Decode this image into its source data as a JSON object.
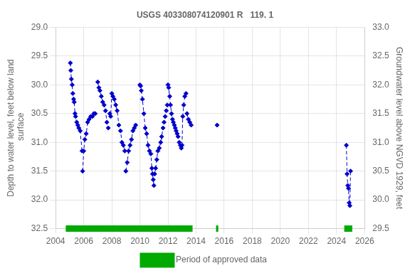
{
  "chart_data": {
    "type": "line",
    "title": "USGS 403308074120901 R   119. 1",
    "ylabel": "Depth to water level, feet below land\n surface",
    "y2label": "Groundwater level above NGVD 1929, feet",
    "xlim": [
      2004,
      2026
    ],
    "xticks": [
      2004,
      2006,
      2008,
      2010,
      2012,
      2014,
      2016,
      2018,
      2020,
      2022,
      2024,
      2026
    ],
    "ylim": [
      32.5,
      29.0
    ],
    "yticks": [
      {
        "value": 29.0,
        "label": "29.0"
      },
      29.5,
      {
        "value": 30.0,
        "label": "30.0"
      },
      30.5,
      {
        "value": 31.0,
        "label": "31.0"
      },
      31.5,
      {
        "value": 32.0,
        "label": "32.0"
      },
      32.5
    ],
    "y2lim": [
      29.5,
      33.0
    ],
    "y2ticks": [
      {
        "value": 33.0,
        "label": "33.0"
      },
      32.5,
      {
        "value": 32.0,
        "label": "32.0"
      },
      31.5,
      {
        "value": 31.0,
        "label": "31.0"
      },
      30.5,
      {
        "value": 30.0,
        "label": "30.0"
      },
      29.5
    ],
    "grid": true,
    "legend": "bottom",
    "series": [
      {
        "color": "#0000cc",
        "marker": "diamond",
        "line_style": "dashed",
        "x": [
          2005.05,
          2005.08,
          2005.12,
          2005.18,
          2005.22,
          2005.28,
          2005.32,
          2005.38,
          2005.42,
          2005.5,
          2005.58,
          2005.65,
          2005.75,
          2005.88
        ],
        "values": [
          29.62,
          29.75,
          29.9,
          30.0,
          30.15,
          30.25,
          30.3,
          30.5,
          30.55,
          30.65,
          30.7,
          30.75,
          30.8,
          31.15
        ]
      },
      {
        "color": "#0000cc",
        "marker": "diamond",
        "line_style": "dashed",
        "x": [
          2005.92,
          2006.0,
          2006.08,
          2006.18,
          2006.28,
          2006.38,
          2006.5,
          2006.62,
          2006.72,
          2006.82
        ],
        "values": [
          31.5,
          31.15,
          30.95,
          30.85,
          30.65,
          30.6,
          30.55,
          30.55,
          30.5,
          30.5
        ]
      },
      {
        "color": "#0000cc",
        "marker": "diamond",
        "line_style": "dashed",
        "x": [
          2007.0,
          2007.08,
          2007.15,
          2007.25,
          2007.35,
          2007.45,
          2007.55,
          2007.65,
          2007.75
        ],
        "values": [
          29.95,
          30.05,
          30.1,
          30.2,
          30.3,
          30.35,
          30.45,
          30.65,
          30.75
        ]
      },
      {
        "color": "#0000cc",
        "marker": "diamond",
        "line_style": "dashed",
        "x": [
          2007.85,
          2007.92,
          2008.0,
          2008.08,
          2008.18,
          2008.28,
          2008.38,
          2008.5,
          2008.62,
          2008.72,
          2008.82,
          2008.92
        ],
        "values": [
          30.5,
          30.55,
          30.15,
          30.2,
          30.25,
          30.35,
          30.45,
          30.7,
          30.8,
          31.0,
          31.05,
          31.15
        ]
      },
      {
        "color": "#0000cc",
        "marker": "diamond",
        "line_style": "dashed",
        "x": [
          2009.0,
          2009.1,
          2009.2,
          2009.3,
          2009.4,
          2009.5,
          2009.6,
          2009.7
        ],
        "values": [
          31.5,
          31.35,
          31.15,
          31.05,
          30.95,
          30.8,
          30.75,
          30.7
        ]
      },
      {
        "color": "#0000cc",
        "marker": "diamond",
        "line_style": "dashed",
        "x": [
          2010.0,
          2010.05,
          2010.1,
          2010.18,
          2010.28,
          2010.38,
          2010.48,
          2010.58,
          2010.68,
          2010.78,
          2010.85,
          2010.9,
          2010.95,
          2011.0
        ],
        "values": [
          30.0,
          30.02,
          30.1,
          30.25,
          30.5,
          30.75,
          30.85,
          31.05,
          31.15,
          31.2,
          31.45,
          31.55,
          31.65,
          31.75
        ]
      },
      {
        "color": "#0000cc",
        "marker": "diamond",
        "line_style": "dashed",
        "x": [
          2011.05,
          2011.12,
          2011.2,
          2011.28,
          2011.38,
          2011.48,
          2011.55,
          2011.65,
          2011.72,
          2011.8,
          2011.88,
          2011.95
        ],
        "values": [
          31.55,
          31.45,
          31.3,
          31.15,
          31.1,
          31.0,
          30.9,
          30.75,
          30.65,
          30.55,
          30.45,
          30.35
        ]
      },
      {
        "color": "#0000cc",
        "marker": "diamond",
        "line_style": "dashed",
        "x": [
          2012.0,
          2012.05,
          2012.12,
          2012.18,
          2012.25,
          2012.32,
          2012.38,
          2012.45,
          2012.52,
          2012.58,
          2012.65,
          2012.72,
          2012.8,
          2012.88,
          2012.95
        ],
        "values": [
          30.0,
          30.05,
          30.2,
          30.35,
          30.5,
          30.6,
          30.65,
          30.7,
          30.75,
          30.8,
          30.85,
          30.9,
          31.0,
          31.05,
          31.1
        ]
      },
      {
        "color": "#0000cc",
        "marker": "diamond",
        "line_style": "dashed",
        "x": [
          2013.0,
          2013.05,
          2013.12,
          2013.2,
          2013.28
        ],
        "values": [
          31.05,
          30.55,
          30.35,
          30.2,
          30.15
        ]
      },
      {
        "color": "#0000cc",
        "marker": "diamond",
        "line_style": "dashed",
        "x": [
          2013.35,
          2013.45,
          2013.55,
          2013.65
        ],
        "values": [
          30.5,
          30.6,
          30.65,
          30.7
        ]
      },
      {
        "color": "#0000cc",
        "marker": "diamond",
        "x": [
          2015.5
        ],
        "values": [
          30.7
        ]
      },
      {
        "color": "#0000cc",
        "marker": "diamond",
        "line_style": "dashed",
        "x": [
          2024.7,
          2024.75,
          2024.8,
          2024.85,
          2024.9,
          2024.95,
          2025.0
        ],
        "values": [
          31.05,
          31.55,
          31.75,
          31.8,
          32.05,
          32.1,
          31.5
        ]
      }
    ],
    "approved_periods": {
      "name": "Period of approved data",
      "color": "#00aa00",
      "y": 32.5,
      "periods": [
        [
          2004.72,
          2013.75
        ],
        [
          2015.42,
          2015.58
        ],
        [
          2024.55,
          2025.12
        ]
      ]
    }
  }
}
